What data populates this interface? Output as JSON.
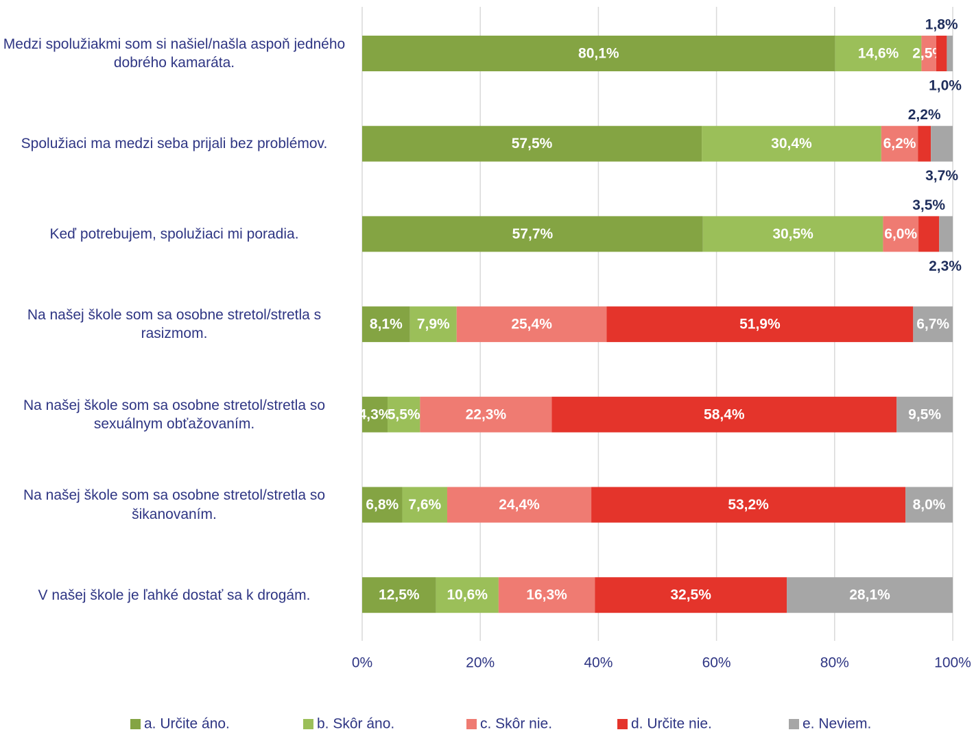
{
  "chart_data": {
    "type": "stacked-bar-horizontal",
    "categories": [
      "Medzi spolužiakmi som si našiel/našla aspoň jedného dobrého kamaráta.",
      "Spolužiaci ma medzi seba prijali bez problémov.",
      "Keď potrebujem, spolužiaci mi poradia.",
      "Na našej škole som sa osobne stretol/stretla s rasizmom.",
      "Na našej škole som sa osobne stretol/stretla so sexuálnym obťažovaním.",
      "Na našej škole som sa osobne stretol/stretla so šikanovaním.",
      "V našej škole je ľahké dostať sa k drogám."
    ],
    "series": [
      {
        "name": "a. Určite áno.",
        "color": "#84a443",
        "values": [
          80.1,
          57.5,
          57.7,
          8.1,
          4.3,
          6.8,
          12.5
        ],
        "value_labels": [
          "80,1%",
          "57,5%",
          "57,7%",
          "8,1%",
          "4,3%",
          "6,8%",
          "12,5%"
        ]
      },
      {
        "name": "b. Skôr áno.",
        "color": "#9bbf59",
        "values": [
          14.6,
          30.4,
          30.5,
          7.9,
          5.5,
          7.6,
          10.6
        ],
        "value_labels": [
          "14,6%",
          "30,4%",
          "30,5%",
          "7,9%",
          "5,5%",
          "7,6%",
          "10,6%"
        ]
      },
      {
        "name": "c. Skôr nie.",
        "color": "#ef7b72",
        "values": [
          2.5,
          6.2,
          6.0,
          25.4,
          22.3,
          24.4,
          16.3
        ],
        "value_labels": [
          "2,5%",
          "6,2%",
          "6,0%",
          "25,4%",
          "22,3%",
          "24,4%",
          "16,3%"
        ]
      },
      {
        "name": "d. Určite nie.",
        "color": "#e4342b",
        "values": [
          1.8,
          2.2,
          3.5,
          51.9,
          58.4,
          53.2,
          32.5
        ],
        "value_labels": [
          "1,8%",
          "2,2%",
          "3,5%",
          "51,9%",
          "58,4%",
          "53,2%",
          "32,5%"
        ]
      },
      {
        "name": "e. Neviem.",
        "color": "#a6a6a6",
        "values": [
          1.0,
          3.7,
          2.3,
          6.7,
          9.5,
          8.0,
          28.1
        ],
        "value_labels": [
          "1,0%",
          "3,7%",
          "2,3%",
          "6,7%",
          "9,5%",
          "8,0%",
          "28,1%"
        ]
      }
    ],
    "xlim": [
      0,
      100
    ],
    "xticks": [
      {
        "value": 0,
        "label": "0%"
      },
      {
        "value": 20,
        "label": "20%"
      },
      {
        "value": 40,
        "label": "40%"
      },
      {
        "value": 60,
        "label": "60%"
      },
      {
        "value": 80,
        "label": "80%"
      },
      {
        "value": 100,
        "label": "100%"
      }
    ],
    "grid": true,
    "legend": "bottom"
  }
}
